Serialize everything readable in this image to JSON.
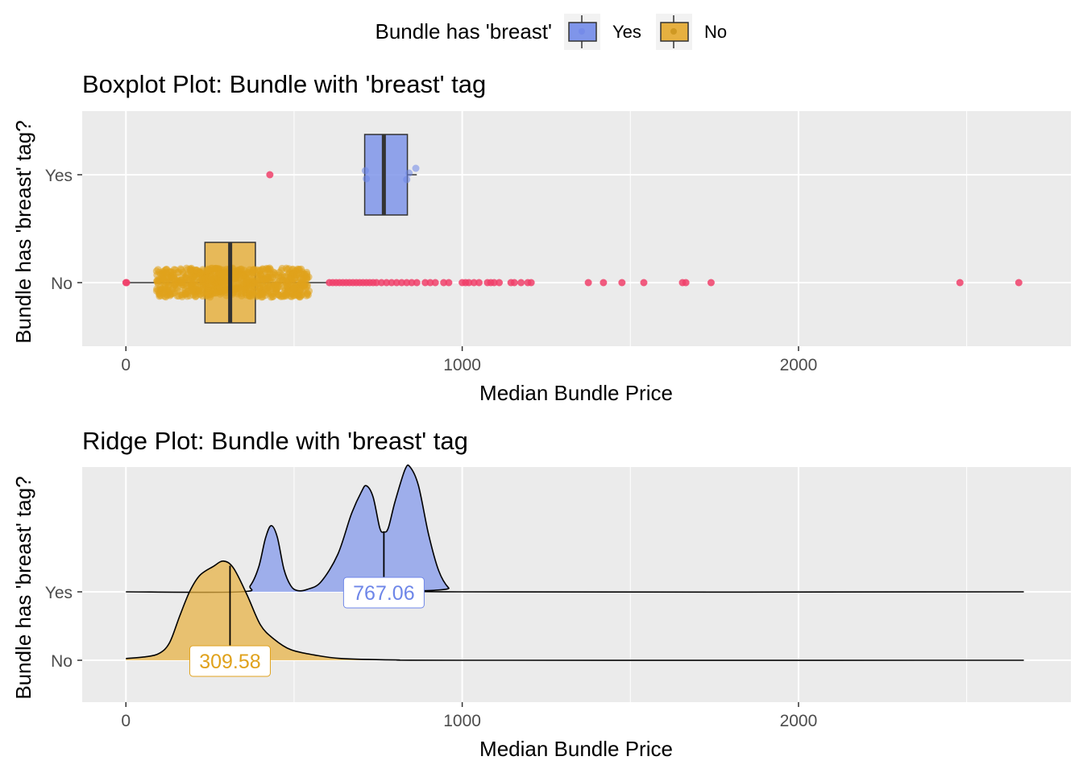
{
  "legend": {
    "title": "Bundle has 'breast'",
    "items": [
      {
        "label": "Yes",
        "fill": "#7f95ea"
      },
      {
        "label": "No",
        "fill": "#e6b040"
      }
    ]
  },
  "colors": {
    "panel": "#ebebeb",
    "grid": "#ffffff",
    "yes": "#6e86e8",
    "no": "#e0a21c",
    "outlier": "#f0406a",
    "outlier_yes": "#f0406a",
    "label_yes_text": "#6e86e8",
    "label_no_text": "#e0a21c"
  },
  "chart_data": [
    {
      "type": "boxplot",
      "title": "Boxplot Plot: Bundle with 'breast' tag",
      "xlabel": "Median Bundle Price",
      "ylabel": "Bundle has 'breast' tag?",
      "xlim": [
        -130,
        2810
      ],
      "x_ticks": [
        0,
        1000,
        2000
      ],
      "categories": [
        "Yes",
        "No"
      ],
      "boxes": [
        {
          "name": "Yes",
          "q1": 710,
          "median": 767,
          "q3": 837,
          "whisker_low": 710,
          "whisker_high": 865,
          "points": [
            [
              712,
              0.05
            ],
            [
              715,
              -0.05
            ],
            [
              835,
              -0.06
            ],
            [
              862,
              0.08
            ],
            [
              842,
              0.02
            ]
          ],
          "outliers": [
            428
          ]
        },
        {
          "name": "No",
          "q1": 235,
          "median": 310,
          "q3": 385,
          "whisker_low": 0,
          "whisker_high": 600,
          "jitter_range": [
            90,
            545
          ],
          "outliers": [
            0,
            2,
            605,
            615,
            625,
            635,
            645,
            655,
            665,
            675,
            685,
            695,
            705,
            715,
            725,
            735,
            745,
            760,
            775,
            790,
            805,
            820,
            835,
            850,
            865,
            890,
            905,
            920,
            945,
            960,
            1000,
            1010,
            1020,
            1035,
            1050,
            1075,
            1085,
            1095,
            1110,
            1145,
            1155,
            1175,
            1195,
            1205,
            1375,
            1420,
            1475,
            1540,
            1655,
            1665,
            1740,
            2480,
            2655
          ]
        }
      ]
    },
    {
      "type": "ridgeline",
      "title": "Ridge Plot: Bundle with 'breast' tag",
      "xlabel": "Median Bundle Price",
      "ylabel": "Bundle has 'breast' tag?",
      "xlim": [
        -130,
        2810
      ],
      "x_ticks": [
        0,
        1000,
        2000
      ],
      "categories": [
        "Yes",
        "No"
      ],
      "x_range": [
        0,
        2670
      ],
      "series": [
        {
          "name": "Yes",
          "median": 767.06,
          "median_label": "767.06",
          "density": [
            [
              0,
              0
            ],
            [
              340,
              0
            ],
            [
              370,
              0.05
            ],
            [
              395,
              0.2
            ],
            [
              415,
              0.43
            ],
            [
              432,
              0.53
            ],
            [
              450,
              0.44
            ],
            [
              470,
              0.18
            ],
            [
              490,
              0.05
            ],
            [
              510,
              0.01
            ],
            [
              540,
              0.02
            ],
            [
              580,
              0.08
            ],
            [
              630,
              0.3
            ],
            [
              670,
              0.62
            ],
            [
              700,
              0.8
            ],
            [
              715,
              0.85
            ],
            [
              735,
              0.76
            ],
            [
              755,
              0.51
            ],
            [
              767,
              0.48
            ],
            [
              780,
              0.51
            ],
            [
              800,
              0.72
            ],
            [
              830,
              0.98
            ],
            [
              845,
              1.0
            ],
            [
              870,
              0.85
            ],
            [
              900,
              0.46
            ],
            [
              930,
              0.17
            ],
            [
              960,
              0.03
            ],
            [
              990,
              0
            ],
            [
              2670,
              0
            ]
          ]
        },
        {
          "name": "No",
          "median": 309.58,
          "median_label": "309.58",
          "density": [
            [
              0,
              0.01
            ],
            [
              60,
              0.02
            ],
            [
              100,
              0.04
            ],
            [
              130,
              0.1
            ],
            [
              160,
              0.25
            ],
            [
              190,
              0.39
            ],
            [
              220,
              0.48
            ],
            [
              260,
              0.53
            ],
            [
              290,
              0.56
            ],
            [
              320,
              0.52
            ],
            [
              360,
              0.37
            ],
            [
              400,
              0.2
            ],
            [
              440,
              0.12
            ],
            [
              490,
              0.06
            ],
            [
              560,
              0.03
            ],
            [
              640,
              0.01
            ],
            [
              800,
              0.002
            ],
            [
              1000,
              0
            ],
            [
              2670,
              0
            ]
          ]
        }
      ]
    }
  ]
}
